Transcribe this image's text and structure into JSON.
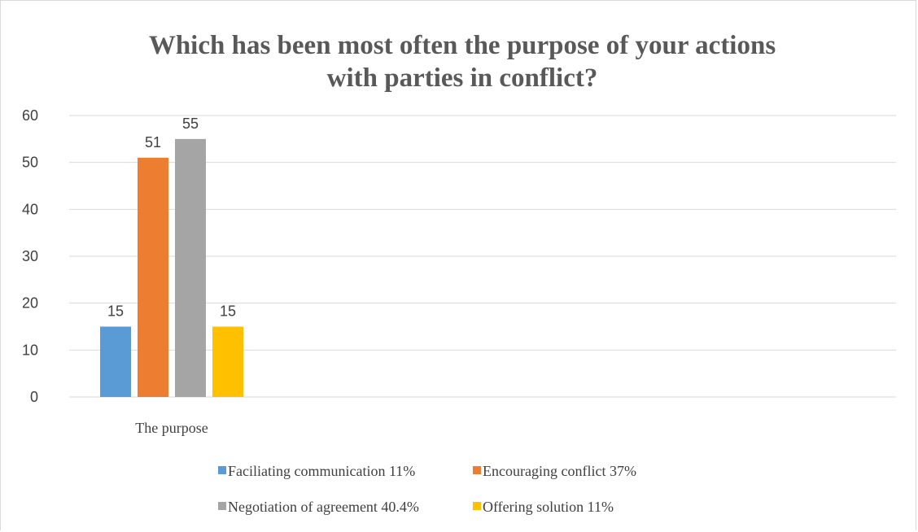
{
  "chart_data": {
    "type": "bar",
    "title": "Which has been most often the purpose of your actions with parties in conflict?",
    "title_lines": [
      "Which has been most often the purpose of your actions",
      "with parties in conflict?"
    ],
    "categories": [
      "The purpose"
    ],
    "series": [
      {
        "name": "Faciliating communication 11%",
        "values": [
          15
        ],
        "color": "#5b9bd5"
      },
      {
        "name": "Encouraging conflict 37%",
        "values": [
          51
        ],
        "color": "#ed7d31"
      },
      {
        "name": "Negotiation of agreement 40.4%",
        "values": [
          55
        ],
        "color": "#a5a5a5"
      },
      {
        "name": "Offering solution 11%",
        "values": [
          15
        ],
        "color": "#ffc000"
      }
    ],
    "yticks": [
      "0",
      "10",
      "20",
      "30",
      "40",
      "50",
      "60"
    ],
    "ylim": [
      0,
      60
    ],
    "grid": true,
    "legend_position": "bottom",
    "gridline_color": "#d9d9d9"
  }
}
